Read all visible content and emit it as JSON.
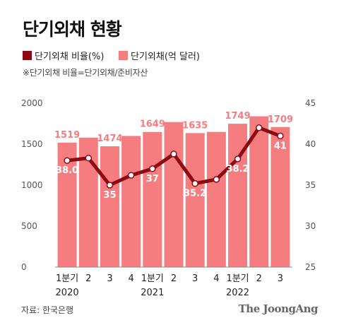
{
  "title": "단기외채 현황",
  "legend": {
    "ratio_label": "단기외채 비율(%)",
    "amount_label": "단기외채(억 달러)",
    "ratio_color": "#8b0a13",
    "amount_color": "#f57d80"
  },
  "note": "※단기외채 비율=단기외채/준비자산",
  "source": "자료: 한국은행",
  "brand": "The JoongAng",
  "chart_data": {
    "type": "bar",
    "categories": [
      "1분기",
      "2",
      "3",
      "4",
      "1분기",
      "2",
      "3",
      "4",
      "1분기",
      "2",
      "3"
    ],
    "years": [
      {
        "label": "2020",
        "index": 0
      },
      {
        "label": "2021",
        "index": 4
      },
      {
        "label": "2022",
        "index": 8
      }
    ],
    "series": [
      {
        "name": "단기외채(억 달러)",
        "type": "bar",
        "axis": "left",
        "values": [
          1519,
          1580,
          1474,
          1600,
          1649,
          1770,
          1635,
          1650,
          1749,
          1840,
          1709
        ],
        "labels": [
          "1519",
          "",
          "1474",
          "",
          "1649",
          "",
          "1635",
          "",
          "1749",
          "",
          "1709"
        ]
      },
      {
        "name": "단기외채 비율(%)",
        "type": "line",
        "axis": "right",
        "values": [
          38.0,
          38.3,
          35.0,
          36.2,
          37.0,
          38.8,
          35.2,
          35.7,
          38.2,
          42.0,
          41.0
        ],
        "labels": [
          "38.0",
          "",
          "35",
          "",
          "37",
          "",
          "35.2",
          "",
          "38.2",
          "",
          "41"
        ]
      }
    ],
    "left_axis": {
      "ticks": [
        0,
        500,
        1000,
        1500,
        2000
      ],
      "range": [
        0,
        2000
      ]
    },
    "right_axis": {
      "ticks": [
        25,
        30,
        35,
        40,
        45
      ],
      "range": [
        25,
        45
      ]
    },
    "grid": false
  }
}
